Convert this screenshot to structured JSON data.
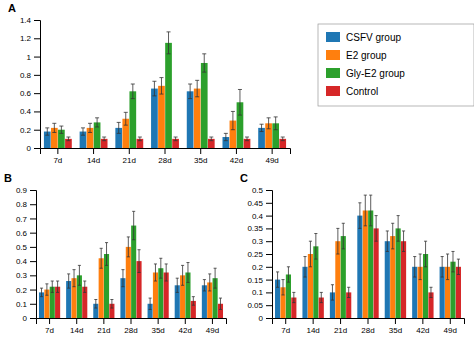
{
  "chart_data": [
    {
      "type": "bar",
      "title": "A",
      "categories": [
        "7d",
        "14d",
        "21d",
        "28d",
        "35d",
        "42d",
        "49d"
      ],
      "series": [
        {
          "name": "CSFV group",
          "values": [
            0.18,
            0.18,
            0.22,
            0.65,
            0.62,
            0.12,
            0.22
          ],
          "errors": [
            0.04,
            0.04,
            0.06,
            0.08,
            0.08,
            0.04,
            0.04
          ]
        },
        {
          "name": "E2 group",
          "values": [
            0.22,
            0.22,
            0.32,
            0.68,
            0.65,
            0.3,
            0.27
          ],
          "errors": [
            0.05,
            0.05,
            0.07,
            0.09,
            0.09,
            0.1,
            0.06
          ]
        },
        {
          "name": "Gly-E2 group",
          "values": [
            0.2,
            0.28,
            0.62,
            1.15,
            0.93,
            0.5,
            0.27
          ],
          "errors": [
            0.04,
            0.05,
            0.08,
            0.12,
            0.1,
            0.14,
            0.07
          ]
        },
        {
          "name": "Control",
          "values": [
            0.1,
            0.1,
            0.1,
            0.1,
            0.1,
            0.1,
            0.1
          ],
          "errors": [
            0.02,
            0.02,
            0.02,
            0.02,
            0.02,
            0.02,
            0.02
          ]
        }
      ],
      "ylim": [
        0,
        1.4
      ],
      "yticks": [
        0,
        0.2,
        0.4,
        0.6,
        0.8,
        1,
        1.2,
        1.4
      ],
      "legend": "right"
    },
    {
      "type": "bar",
      "title": "B",
      "categories": [
        "7d",
        "14d",
        "21d",
        "28d",
        "35d",
        "42d",
        "49d"
      ],
      "series": [
        {
          "name": "CSFV group",
          "values": [
            0.18,
            0.26,
            0.1,
            0.28,
            0.1,
            0.23,
            0.23
          ],
          "errors": [
            0.03,
            0.05,
            0.03,
            0.06,
            0.04,
            0.05,
            0.04
          ]
        },
        {
          "name": "E2 group",
          "values": [
            0.2,
            0.28,
            0.42,
            0.5,
            0.32,
            0.3,
            0.25
          ],
          "errors": [
            0.04,
            0.06,
            0.07,
            0.07,
            0.06,
            0.07,
            0.06
          ]
        },
        {
          "name": "Gly-E2 group",
          "values": [
            0.22,
            0.3,
            0.45,
            0.65,
            0.35,
            0.32,
            0.28
          ],
          "errors": [
            0.04,
            0.07,
            0.08,
            0.1,
            0.07,
            0.07,
            0.07
          ]
        },
        {
          "name": "Control",
          "values": [
            0.22,
            0.22,
            0.1,
            0.4,
            0.32,
            0.12,
            0.1
          ],
          "errors": [
            0.04,
            0.04,
            0.03,
            0.08,
            0.06,
            0.03,
            0.04
          ]
        }
      ],
      "ylim": [
        0,
        0.9
      ],
      "yticks": [
        0,
        0.1,
        0.2,
        0.3,
        0.4,
        0.5,
        0.6,
        0.7,
        0.8,
        0.9
      ]
    },
    {
      "type": "bar",
      "title": "C",
      "categories": [
        "7d",
        "14d",
        "21d",
        "28d",
        "35d",
        "42d",
        "49d"
      ],
      "series": [
        {
          "name": "CSFV group",
          "values": [
            0.15,
            0.2,
            0.1,
            0.4,
            0.3,
            0.2,
            0.2
          ],
          "errors": [
            0.03,
            0.04,
            0.03,
            0.05,
            0.04,
            0.04,
            0.04
          ]
        },
        {
          "name": "E2 group",
          "values": [
            0.12,
            0.25,
            0.3,
            0.42,
            0.32,
            0.2,
            0.2
          ],
          "errors": [
            0.03,
            0.05,
            0.05,
            0.06,
            0.05,
            0.05,
            0.05
          ]
        },
        {
          "name": "Gly-E2 group",
          "values": [
            0.17,
            0.28,
            0.32,
            0.42,
            0.35,
            0.25,
            0.22
          ],
          "errors": [
            0.03,
            0.05,
            0.05,
            0.06,
            0.05,
            0.05,
            0.04
          ]
        },
        {
          "name": "Control",
          "values": [
            0.08,
            0.08,
            0.1,
            0.35,
            0.3,
            0.1,
            0.2
          ],
          "errors": [
            0.02,
            0.02,
            0.02,
            0.05,
            0.04,
            0.02,
            0.03
          ]
        }
      ],
      "ylim": [
        0,
        0.5
      ],
      "yticks": [
        0,
        0.05,
        0.1,
        0.15,
        0.2,
        0.25,
        0.3,
        0.35,
        0.4,
        0.45,
        0.5
      ]
    }
  ]
}
